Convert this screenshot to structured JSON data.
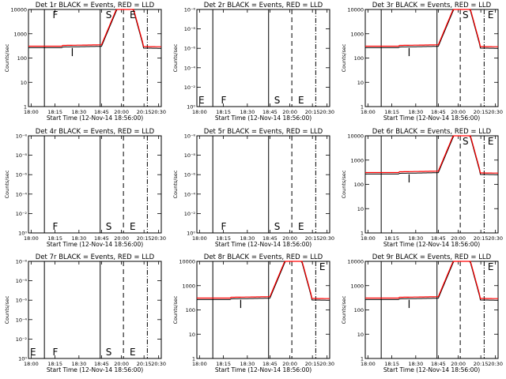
{
  "figure": {
    "background": "#ffffff",
    "colors": {
      "black": "#000000",
      "red": "#ff0000"
    }
  },
  "chart_data": [
    {
      "type": "line",
      "title": "Det 1r BLACK = Events, RED = LLD",
      "xlabel": "Start Time (12-Nov-14 18:56:00)",
      "ylabel": "Counts/sec",
      "x_ticks": [
        "18:00",
        "18:15",
        "18:30",
        "18:45",
        "20:00",
        "20:15",
        "20:30"
      ],
      "y_scale": "log",
      "ylim": [
        1,
        10000
      ],
      "y_ticks": [
        "1",
        "10",
        "100",
        "1000",
        "10000"
      ],
      "markers": [
        "F",
        "S",
        "E"
      ],
      "has_data": true
    },
    {
      "type": "line",
      "title": "Det 2r BLACK = Events, RED = LLD",
      "xlabel": "Start Time (12-Nov-14 18:56:00)",
      "ylabel": "Counts/sec",
      "x_ticks": [
        "18:00",
        "18:15",
        "18:30",
        "18:45",
        "20:00",
        "20:15",
        "20:30"
      ],
      "y_scale": "log",
      "ylim": [
        1,
        10
      ],
      "y_ticks": [
        "10⁰",
        "10⁻²",
        "10⁻⁴",
        "10⁻⁶",
        "10⁻⁸",
        "10⁻⁸"
      ],
      "markers": [
        "E",
        "F",
        "S",
        "E"
      ],
      "has_data": false
    },
    {
      "type": "line",
      "title": "Det 3r BLACK = Events, RED = LLD",
      "xlabel": "Start Time (12-Nov-14 18:56:00)",
      "ylabel": "Counts/sec",
      "x_ticks": [
        "18:00",
        "18:15",
        "18:30",
        "18:45",
        "20:00",
        "20:15",
        "20:30"
      ],
      "y_scale": "log",
      "ylim": [
        1,
        10000
      ],
      "y_ticks": [
        "1",
        "10",
        "100",
        "1000",
        "10000"
      ],
      "markers": [
        "S",
        "E"
      ],
      "has_data": true
    },
    {
      "type": "line",
      "title": "Det 4r BLACK = Events, RED = LLD",
      "xlabel": "Start Time (12-Nov-14 18:56:00)",
      "ylabel": "Counts/sec",
      "x_ticks": [
        "18:00",
        "18:15",
        "18:30",
        "18:45",
        "20:00",
        "20:15",
        "20:30"
      ],
      "y_scale": "log",
      "ylim": [
        1,
        10
      ],
      "y_ticks": [
        "10⁰",
        "10⁻²",
        "10⁻⁴",
        "10⁻⁶",
        "10⁻⁸",
        "10⁻⁸"
      ],
      "markers": [
        "F",
        "S",
        "E"
      ],
      "has_data": false
    },
    {
      "type": "line",
      "title": "Det 5r BLACK = Events, RED = LLD",
      "xlabel": "Start Time (12-Nov-14 18:56:00)",
      "ylabel": "Counts/sec",
      "x_ticks": [
        "18:00",
        "18:15",
        "18:30",
        "18:45",
        "20:00",
        "20:15",
        "20:30"
      ],
      "y_scale": "log",
      "ylim": [
        1,
        10
      ],
      "y_ticks": [
        "10⁰",
        "10⁻²",
        "10⁻⁴",
        "10⁻⁶",
        "10⁻⁸",
        "10⁻⁸"
      ],
      "markers": [
        "F",
        "S",
        "E"
      ],
      "has_data": false
    },
    {
      "type": "line",
      "title": "Det 6r BLACK = Events, RED = LLD",
      "xlabel": "Start Time (12-Nov-14 18:56:00)",
      "ylabel": "Counts/sec",
      "x_ticks": [
        "18:00",
        "18:15",
        "18:30",
        "18:45",
        "20:00",
        "20:15",
        "20:30"
      ],
      "y_scale": "log",
      "ylim": [
        1,
        10000
      ],
      "y_ticks": [
        "1",
        "10",
        "100",
        "1000",
        "10000"
      ],
      "markers": [
        "S",
        "E"
      ],
      "has_data": true
    },
    {
      "type": "line",
      "title": "Det 7r BLACK = Events, RED = LLD",
      "xlabel": "Start Time (12-Nov-14 18:56:00)",
      "ylabel": "Counts/sec",
      "x_ticks": [
        "18:00",
        "18:15",
        "18:30",
        "18:45",
        "20:00",
        "20:15",
        "20:30"
      ],
      "y_scale": "log",
      "ylim": [
        1,
        10
      ],
      "y_ticks": [
        "10⁰",
        "10⁻²",
        "10⁻⁴",
        "10⁻⁶",
        "10⁻⁸",
        "10⁻⁸"
      ],
      "markers": [
        "E",
        "F",
        "S",
        "E"
      ],
      "has_data": false
    },
    {
      "type": "line",
      "title": "Det 8r BLACK = Events, RED = LLD",
      "xlabel": "Start Time (12-Nov-14 18:56:00)",
      "ylabel": "Counts/sec",
      "x_ticks": [
        "18:00",
        "18:15",
        "18:30",
        "18:45",
        "20:00",
        "20:15",
        "20:30"
      ],
      "y_scale": "log",
      "ylim": [
        1,
        10000
      ],
      "y_ticks": [
        "1",
        "10",
        "100",
        "1000",
        "10000"
      ],
      "markers": [
        "E"
      ],
      "has_data": true
    },
    {
      "type": "line",
      "title": "Det 9r BLACK = Events, RED = LLD",
      "xlabel": "Start Time (12-Nov-14 18:56:00)",
      "ylabel": "Counts/sec",
      "x_ticks": [
        "18:00",
        "18:15",
        "18:30",
        "18:45",
        "20:00",
        "20:15",
        "20:30"
      ],
      "y_scale": "log",
      "ylim": [
        1,
        10000
      ],
      "y_ticks": [
        "1",
        "10",
        "100",
        "1000",
        "10000"
      ],
      "markers": [
        "E"
      ],
      "has_data": true
    }
  ]
}
